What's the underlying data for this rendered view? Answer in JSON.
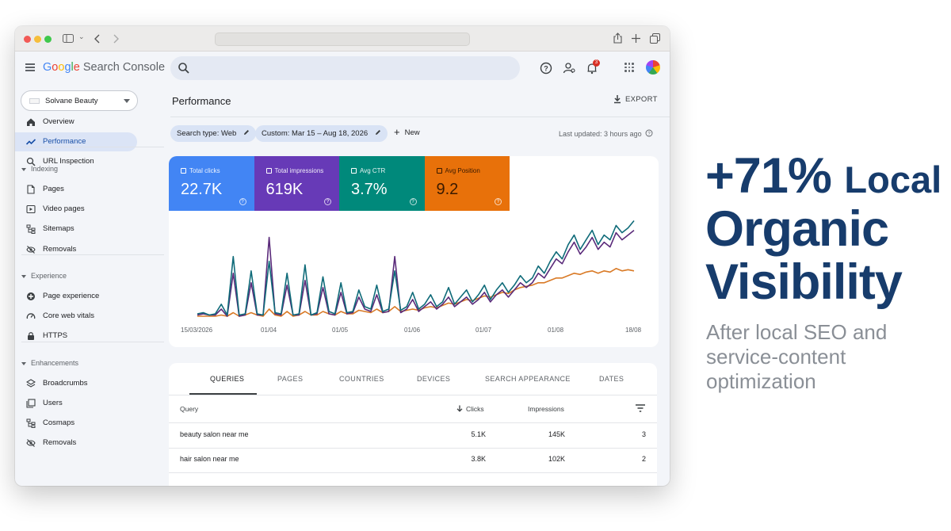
{
  "browser": {
    "url": ""
  },
  "app": {
    "logo_google": "Google",
    "logo_product": "Search Console",
    "notification_count": "3"
  },
  "sidebar": {
    "property": "Solvane Beauty",
    "items_top": [
      {
        "label": "Overview",
        "icon": "home-icon"
      },
      {
        "label": "Performance",
        "icon": "trending-icon",
        "active": true
      },
      {
        "label": "URL Inspection",
        "icon": "search-icon"
      }
    ],
    "sections": [
      {
        "title": "Indexing",
        "items": [
          {
            "label": "Pages",
            "icon": "pages-icon"
          },
          {
            "label": "Video pages",
            "icon": "video-pages-icon"
          },
          {
            "label": "Sitemaps",
            "icon": "sitemaps-icon"
          },
          {
            "label": "Removals",
            "icon": "removals-icon"
          }
        ]
      },
      {
        "title": "Experience",
        "items": [
          {
            "label": "Page experience",
            "icon": "page-experience-icon"
          },
          {
            "label": "Core web vitals",
            "icon": "gauge-icon"
          },
          {
            "label": "HTTPS",
            "icon": "lock-icon"
          }
        ]
      },
      {
        "title": "Enhancements",
        "items": [
          {
            "label": "Broadcrumbs",
            "icon": "layers-icon"
          },
          {
            "label": "Users",
            "icon": "users-icon"
          },
          {
            "label": "Cosmaps",
            "icon": "sitemaps-icon"
          },
          {
            "label": "Removals",
            "icon": "removals-icon"
          }
        ]
      }
    ]
  },
  "main": {
    "title": "Performance",
    "export_label": "EXPORT",
    "filters": {
      "search_type": "Search type: Web",
      "date_range": "Custom: Mar 15 – Aug 18, 2026",
      "new_label": "New"
    },
    "last_updated": "Last updated: 3 hours ago",
    "metrics": [
      {
        "label": "Total clicks",
        "value": "22.7K",
        "color": "#4285f4"
      },
      {
        "label": "Total impressions",
        "value": "619K",
        "color": "#673ab7"
      },
      {
        "label": "Avg CTR",
        "value": "3.7%",
        "color": "#00897b"
      },
      {
        "label": "Avg Position",
        "value": "9.2",
        "color": "#e8710a"
      }
    ],
    "tabs": [
      "QUERIES",
      "PAGES",
      "COUNTRIES",
      "DEVICES",
      "SEARCH APPEARANCE",
      "DATES"
    ],
    "table": {
      "headers": {
        "query": "Query",
        "clicks": "Clicks",
        "impressions": "Impressions"
      },
      "rows": [
        {
          "query": "beauty salon near me",
          "clicks": "5.1K",
          "impressions": "145K",
          "position": "3"
        },
        {
          "query": "hair salon near me",
          "clicks": "3.8K",
          "impressions": "102K",
          "position": "2"
        }
      ]
    }
  },
  "chart_data": {
    "type": "line",
    "x_ticks": [
      "15/03/2026",
      "01/04",
      "01/05",
      "01/06",
      "01/07",
      "01/08",
      "18/08"
    ],
    "y_axis_visible": false,
    "series": [
      {
        "color": "#0f6b79",
        "values": [
          4,
          5,
          3,
          4,
          12,
          3,
          52,
          3,
          4,
          40,
          4,
          3,
          48,
          5,
          4,
          38,
          3,
          4,
          45,
          3,
          5,
          35,
          6,
          4,
          30,
          5,
          6,
          24,
          10,
          8,
          28,
          6,
          8,
          40,
          7,
          10,
          22,
          8,
          12,
          20,
          10,
          14,
          26,
          12,
          18,
          24,
          14,
          20,
          28,
          16,
          24,
          30,
          22,
          28,
          36,
          30,
          34,
          44,
          38,
          48,
          56,
          50,
          62,
          70,
          58,
          66,
          74,
          62,
          70,
          66,
          78,
          72,
          76,
          82
        ]
      },
      {
        "color": "#5a2a7a",
        "values": [
          3,
          4,
          3,
          3,
          8,
          2,
          38,
          2,
          3,
          30,
          3,
          3,
          68,
          4,
          3,
          28,
          3,
          3,
          32,
          3,
          4,
          26,
          4,
          3,
          22,
          4,
          5,
          18,
          8,
          6,
          20,
          5,
          6,
          52,
          5,
          8,
          16,
          6,
          10,
          14,
          8,
          12,
          18,
          10,
          14,
          18,
          12,
          16,
          22,
          14,
          20,
          24,
          18,
          24,
          30,
          26,
          30,
          38,
          34,
          42,
          50,
          46,
          56,
          64,
          54,
          60,
          68,
          58,
          64,
          60,
          72,
          66,
          70,
          74
        ]
      },
      {
        "color": "#d97a26",
        "values": [
          2,
          2,
          2,
          2,
          3,
          2,
          5,
          2,
          3,
          5,
          3,
          2,
          8,
          3,
          2,
          6,
          2,
          3,
          6,
          3,
          3,
          6,
          4,
          3,
          6,
          4,
          4,
          7,
          6,
          5,
          8,
          5,
          6,
          10,
          6,
          7,
          8,
          7,
          9,
          10,
          9,
          11,
          13,
          12,
          14,
          16,
          15,
          17,
          19,
          18,
          20,
          22,
          21,
          24,
          26,
          27,
          28,
          30,
          30,
          32,
          34,
          34,
          36,
          38,
          37,
          39,
          40,
          38,
          40,
          39,
          42,
          40,
          41,
          40
        ]
      }
    ]
  },
  "hero": {
    "headline_number": "+71%",
    "headline_word1": "Local",
    "headline_word2": "Organic",
    "headline_word3": "Visibility",
    "sub_lines": [
      "After local SEO and",
      "service-content",
      "optimization"
    ]
  }
}
